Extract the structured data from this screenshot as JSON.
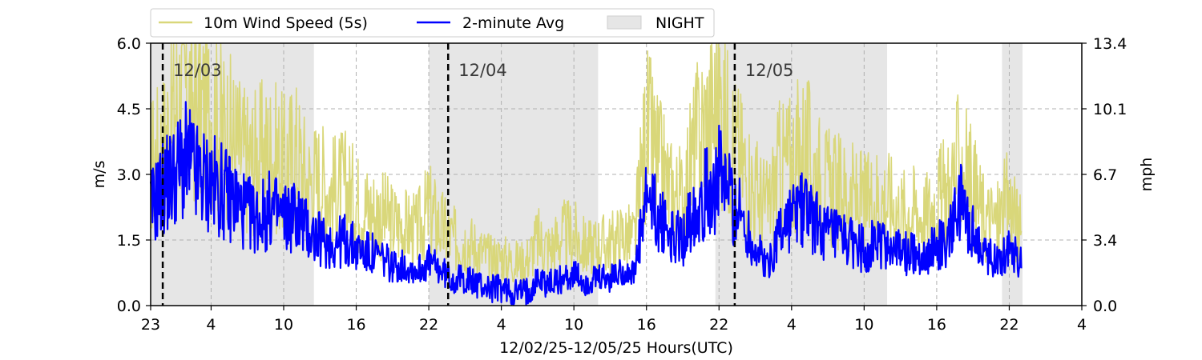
{
  "chart_data": {
    "type": "line",
    "xlabel": "12/02/25-12/05/25  Hours(UTC)",
    "ylabel_left": "m/s",
    "ylabel_right": "mph",
    "x_unit": "hours from 12/02 23:00 UTC",
    "xlim": [
      0,
      77
    ],
    "ylim": [
      0,
      6.0
    ],
    "x_tick_labels": [
      "23",
      "4",
      "10",
      "16",
      "22",
      "4",
      "10",
      "16",
      "22",
      "4",
      "10",
      "16",
      "22",
      "4"
    ],
    "x_tick_positions": [
      0,
      5,
      11,
      17,
      23,
      29,
      35,
      41,
      47,
      53,
      59,
      65,
      71,
      77
    ],
    "y_ticks_left": [
      0.0,
      1.5,
      3.0,
      4.5,
      6.0
    ],
    "y_tick_labels_left": [
      "0.0",
      "1.5",
      "3.0",
      "4.5",
      "6.0"
    ],
    "y_tick_labels_right": [
      "0.0",
      "3.4",
      "6.7",
      "10.1",
      "13.4"
    ],
    "grid": true,
    "legend_position": "top-left, above plot",
    "legend": [
      {
        "label": "10m Wind Speed (5s)",
        "kind": "line",
        "color": "#d9d77a"
      },
      {
        "label": "2-minute Avg",
        "kind": "line",
        "color": "#0000ff"
      },
      {
        "label": "NIGHT",
        "kind": "patch",
        "color": "#e6e6e6"
      }
    ],
    "night_periods": [
      [
        0,
        13.5
      ],
      [
        23.0,
        37.0
      ],
      [
        46.7,
        60.9
      ],
      [
        70.4,
        72.1
      ]
    ],
    "day_markers": [
      {
        "label": "12/03",
        "x": 1.0
      },
      {
        "label": "12/04",
        "x": 24.6
      },
      {
        "label": "12/05",
        "x": 48.3
      }
    ],
    "series": [
      {
        "name": "10m Wind Speed (5s)",
        "color": "#d9d77a",
        "x": [
          0,
          1,
          2,
          3,
          4,
          5,
          6,
          7,
          8,
          9,
          10,
          11,
          12,
          13,
          14,
          15,
          16,
          17,
          18,
          19,
          20,
          21,
          22,
          23,
          24,
          25,
          26,
          27,
          28,
          29,
          30,
          31,
          32,
          33,
          34,
          35,
          36,
          37,
          38,
          39,
          40,
          41,
          42,
          43,
          44,
          45,
          46,
          47,
          48,
          49,
          50,
          51,
          52,
          53,
          54,
          55,
          56,
          57,
          58,
          59,
          60,
          61,
          62,
          63,
          64,
          65,
          66,
          67,
          68,
          69,
          70,
          71,
          72
        ],
        "values": [
          3.2,
          3.6,
          4.6,
          5.0,
          4.4,
          4.5,
          4.0,
          3.7,
          3.3,
          3.4,
          3.5,
          3.2,
          3.5,
          2.8,
          2.9,
          2.6,
          2.7,
          2.4,
          2.2,
          2.1,
          1.9,
          1.8,
          1.7,
          2.2,
          1.8,
          1.5,
          1.5,
          1.3,
          1.1,
          1.1,
          1.0,
          1.0,
          1.5,
          1.3,
          1.6,
          1.6,
          1.3,
          1.4,
          1.4,
          1.6,
          1.5,
          4.0,
          3.2,
          2.6,
          2.4,
          3.6,
          4.2,
          4.6,
          3.8,
          3.2,
          2.6,
          2.2,
          3.1,
          3.3,
          3.6,
          3.1,
          2.7,
          2.6,
          2.5,
          2.3,
          2.5,
          2.4,
          2.1,
          2.2,
          2.0,
          2.4,
          2.6,
          3.4,
          2.6,
          2.0,
          1.9,
          2.4,
          1.6
        ]
      },
      {
        "name": "2-minute Avg",
        "color": "#0000ff",
        "x": [
          0,
          1,
          2,
          3,
          4,
          5,
          6,
          7,
          8,
          9,
          10,
          11,
          12,
          13,
          14,
          15,
          16,
          17,
          18,
          19,
          20,
          21,
          22,
          23,
          24,
          25,
          26,
          27,
          28,
          29,
          30,
          31,
          32,
          33,
          34,
          35,
          36,
          37,
          38,
          39,
          40,
          41,
          42,
          43,
          44,
          45,
          46,
          47,
          48,
          49,
          50,
          51,
          52,
          53,
          54,
          55,
          56,
          57,
          58,
          59,
          60,
          61,
          62,
          63,
          64,
          65,
          66,
          67,
          68,
          69,
          70,
          71,
          72
        ],
        "values": [
          2.2,
          2.7,
          3.0,
          3.3,
          2.9,
          2.8,
          2.6,
          2.4,
          2.1,
          2.0,
          2.2,
          2.0,
          2.1,
          1.7,
          1.5,
          1.4,
          1.5,
          1.3,
          1.2,
          1.1,
          0.9,
          0.9,
          0.8,
          1.0,
          0.8,
          0.6,
          0.6,
          0.5,
          0.4,
          0.4,
          0.3,
          0.3,
          0.6,
          0.5,
          0.6,
          0.7,
          0.5,
          0.6,
          0.6,
          0.8,
          0.7,
          2.4,
          2.0,
          1.6,
          1.5,
          2.3,
          2.6,
          2.9,
          2.5,
          1.9,
          1.3,
          0.9,
          1.7,
          2.0,
          2.3,
          1.9,
          1.6,
          1.5,
          1.4,
          1.3,
          1.4,
          1.4,
          1.2,
          1.2,
          1.1,
          1.4,
          1.5,
          2.3,
          1.6,
          1.2,
          1.0,
          1.4,
          1.0
        ]
      }
    ]
  }
}
